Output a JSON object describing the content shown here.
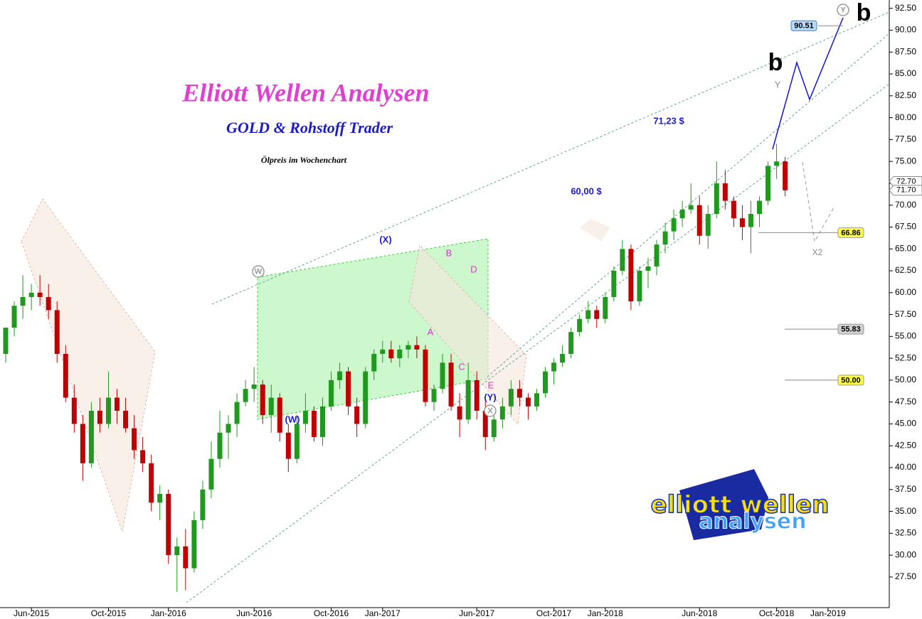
{
  "chart_data": {
    "type": "candlestick",
    "title": "Elliott Wellen Analysen",
    "subtitle": "GOLD & Rohstoff Trader",
    "caption": "Ölpreis im Wochenchart",
    "categories": [
      null,
      null,
      null,
      "Jun-2015",
      null,
      null,
      null,
      null,
      null,
      null,
      null,
      null,
      "Oct-2015",
      null,
      null,
      null,
      null,
      null,
      null,
      "Jan-2016",
      null,
      null,
      null,
      null,
      null,
      null,
      null,
      null,
      null,
      "Jun-2016",
      null,
      null,
      null,
      null,
      null,
      null,
      null,
      null,
      "Oct-2016",
      null,
      null,
      null,
      null,
      null,
      "Jan-2017",
      null,
      null,
      null,
      null,
      null,
      null,
      null,
      null,
      null,
      null,
      "Jun-2017",
      null,
      null,
      null,
      null,
      null,
      null,
      null,
      null,
      "Oct-2017",
      null,
      null,
      null,
      null,
      null,
      "Jan-2018",
      null,
      null,
      null,
      null,
      null,
      null,
      null,
      null,
      null,
      null,
      "Jun-2018",
      null,
      null,
      null,
      null,
      null,
      null,
      null,
      null,
      "Oct-2018",
      null,
      null,
      null,
      null,
      null,
      "Jan-2019",
      null,
      null,
      null,
      null,
      null,
      null,
      null
    ],
    "open": [
      53,
      56,
      58.5,
      59.5,
      60,
      59.5,
      58,
      53,
      48,
      45,
      40.5,
      46.5,
      45,
      48,
      46.5,
      44.5,
      42,
      40.5,
      36,
      37,
      30,
      31,
      28.5,
      34,
      37.5,
      41,
      44,
      45,
      47.5,
      49,
      49.5,
      46,
      48,
      44,
      41,
      45,
      46.5,
      43.5,
      47,
      50,
      51,
      47,
      45,
      51,
      53,
      53.5,
      52.5,
      53.5,
      54,
      53.5,
      47.5,
      49,
      52,
      47,
      45.5,
      50,
      46.5,
      43.5,
      45.5,
      47,
      49,
      48,
      47,
      48.5,
      51,
      52,
      53,
      55.5,
      57,
      58,
      57,
      59.5,
      62.5,
      65,
      59,
      62.5,
      63,
      65.5,
      67,
      68.5,
      69.5,
      70,
      66.5,
      69,
      72.5,
      70.5,
      68.5,
      67.5,
      69,
      70.5,
      74.5,
      75,
      null,
      null,
      null,
      null,
      null,
      null,
      null,
      null,
      null,
      null,
      null,
      null
    ],
    "high": [
      56,
      59,
      62,
      61,
      62,
      61,
      59,
      54,
      49.5,
      46,
      47.5,
      48,
      51,
      49,
      48,
      46,
      43.5,
      41.5,
      38,
      37.5,
      32,
      33,
      35,
      38.5,
      43,
      46.5,
      46,
      48.5,
      50,
      51.5,
      50,
      49.5,
      48.5,
      45,
      46,
      48.5,
      47,
      48,
      51,
      52,
      51.5,
      48,
      51.5,
      53.5,
      54.5,
      54.5,
      54,
      54.5,
      55,
      54,
      49.5,
      53,
      53,
      48.5,
      52,
      51,
      47.5,
      46.5,
      48,
      50,
      50,
      48.5,
      49,
      51.5,
      52.5,
      54,
      56,
      57.5,
      59,
      58.5,
      60,
      63,
      66,
      65.5,
      63,
      64,
      66,
      68,
      69.5,
      70.5,
      72.5,
      71,
      70,
      75,
      74,
      71,
      70,
      70.5,
      71,
      75,
      77,
      75.5,
      null,
      null,
      null,
      null,
      null,
      null,
      null,
      null,
      null,
      null,
      null,
      null
    ],
    "low": [
      52,
      55,
      57,
      58,
      58.5,
      57,
      52,
      47.5,
      44,
      38.5,
      40,
      44,
      44.5,
      45,
      44,
      41,
      39.5,
      35,
      34,
      29,
      25.8,
      26,
      28,
      33,
      36.5,
      40,
      41,
      43.5,
      47,
      47.5,
      45,
      44,
      43,
      39.5,
      40.5,
      44,
      43,
      42.5,
      46.5,
      49,
      46,
      43.5,
      44.5,
      50,
      52,
      52,
      51.5,
      52.5,
      52.5,
      47,
      46.5,
      48.5,
      46.5,
      43.5,
      45,
      45.5,
      42,
      43,
      44.5,
      46,
      47,
      45.5,
      46.5,
      48,
      49.5,
      51.5,
      52.5,
      55,
      56.5,
      56,
      56.5,
      59,
      62,
      58,
      58.5,
      60.5,
      62,
      64.5,
      66,
      67.5,
      69,
      65.5,
      65,
      68.5,
      69.5,
      67.5,
      66,
      64.5,
      67.5,
      70,
      73,
      71,
      null,
      null,
      null,
      null,
      null,
      null,
      null,
      null,
      null,
      null,
      null,
      null
    ],
    "close": [
      56,
      58.5,
      59.5,
      60,
      59.5,
      58,
      53,
      48,
      45,
      40.5,
      46.5,
      45,
      48,
      46.5,
      44.5,
      42,
      40.5,
      36,
      37,
      30,
      31,
      28.5,
      34,
      37.5,
      41,
      44,
      45,
      47.5,
      49,
      49.5,
      46,
      48,
      44,
      41,
      45,
      46.5,
      43.5,
      47,
      50,
      51,
      47,
      45,
      51,
      53,
      53.5,
      52.5,
      53.5,
      54,
      53.5,
      47.5,
      49,
      52,
      47,
      45.5,
      50,
      46.5,
      43.5,
      45.5,
      47,
      49,
      48,
      47,
      48.5,
      51,
      52,
      53,
      55.5,
      57,
      58,
      57,
      59.5,
      62.5,
      65,
      59,
      62.5,
      63,
      65.5,
      67,
      68.5,
      69.5,
      70,
      66.5,
      69,
      72.5,
      70.5,
      68.5,
      67.5,
      69,
      70.5,
      74.5,
      75,
      71.7,
      null,
      null,
      null,
      null,
      null,
      null,
      null,
      null,
      null,
      null,
      null,
      null
    ],
    "up_color": "#1f9a1f",
    "down_color": "#c00000",
    "ylim": [
      24,
      93.45
    ],
    "yticks": [
      {
        "value": 27.5,
        "label": "27.50"
      },
      {
        "value": 30,
        "label": "30.00"
      },
      {
        "value": 32.5,
        "label": "32.50"
      },
      {
        "value": 35,
        "label": "35.00"
      },
      {
        "value": 37.5,
        "label": "37.50"
      },
      {
        "value": 40,
        "label": "40.00"
      },
      {
        "value": 42.5,
        "label": "42.50"
      },
      {
        "value": 45,
        "label": "45.00"
      },
      {
        "value": 47.5,
        "label": "47.50"
      },
      {
        "value": 50,
        "label": "50.00"
      },
      {
        "value": 52.5,
        "label": "52.50"
      },
      {
        "value": 55,
        "label": "55.00"
      },
      {
        "value": 57.5,
        "label": "57.50"
      },
      {
        "value": 60,
        "label": "60.00"
      },
      {
        "value": 62.5,
        "label": "62.50"
      },
      {
        "value": 65,
        "label": "65.00"
      },
      {
        "value": 67.5,
        "label": "67.50"
      },
      {
        "value": 70,
        "label": "70.00"
      },
      {
        "value": 72.5,
        "label": "72.50"
      },
      {
        "value": 75,
        "label": "75.00"
      },
      {
        "value": 77.5,
        "label": "77.50"
      },
      {
        "value": 80,
        "label": "80.00"
      },
      {
        "value": 82.5,
        "label": "82.50"
      },
      {
        "value": 85,
        "label": "85.00"
      },
      {
        "value": 87.5,
        "label": "87.50"
      },
      {
        "value": 90,
        "label": "90.00"
      },
      {
        "value": 92.5,
        "label": "92.50"
      }
    ],
    "levels": [
      90.51,
      66.86,
      55.83,
      {
        "value": 50,
        "label": "50.00"
      }
    ],
    "price_tags": [
      {
        "value": 72.7,
        "label": "72.70"
      },
      {
        "value": 71.7,
        "label": "71.70"
      }
    ],
    "annotations": [
      "(X)",
      "(W)",
      "(Y)",
      "A",
      "B",
      "C",
      "D",
      "E",
      "b",
      "b",
      "Y",
      "X2",
      "71,23 $",
      "60,00 $"
    ],
    "circled": [
      "W",
      "X",
      "Y"
    ],
    "logo": [
      "elliott wellen",
      "analysen"
    ]
  }
}
